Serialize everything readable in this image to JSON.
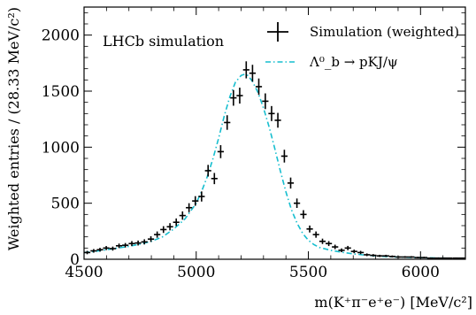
{
  "chart_data": {
    "type": "scatter",
    "annotation": "LHCb simulation",
    "xlabel": "m(K⁺π⁻e⁺e⁻) [MeV/c²]",
    "ylabel": "Weighted entries / (28.33 MeV/c²)",
    "xlim": [
      4500,
      6200
    ],
    "ylim": [
      0,
      2250
    ],
    "xticks": [
      4500,
      5000,
      5500,
      6000
    ],
    "xtick_labels": [
      "4500",
      "5000",
      "5500",
      "6000"
    ],
    "yticks": [
      0,
      500,
      1000,
      1500,
      2000
    ],
    "ytick_labels": [
      "0",
      "500",
      "1000",
      "1500",
      "2000"
    ],
    "legend_position": "top-right",
    "colors": {
      "data": "#000000",
      "fit": "#17becf"
    },
    "series": [
      {
        "name": "Simulation (weighted)",
        "kind": "errorbar",
        "x_halfwidth": 14.17,
        "x": [
          4514,
          4543,
          4571,
          4599,
          4628,
          4656,
          4684,
          4713,
          4741,
          4769,
          4798,
          4826,
          4854,
          4883,
          4911,
          4939,
          4968,
          4996,
          5024,
          5053,
          5081,
          5109,
          5138,
          5166,
          5194,
          5223,
          5251,
          5279,
          5308,
          5336,
          5364,
          5393,
          5421,
          5449,
          5478,
          5506,
          5534,
          5563,
          5591,
          5619,
          5648,
          5676,
          5704,
          5733,
          5761,
          5789,
          5818,
          5846,
          5874,
          5903,
          5931,
          5959,
          5988,
          6016,
          6044,
          6073,
          6101,
          6129,
          6158,
          6186
        ],
        "y": [
          60,
          75,
          85,
          100,
          95,
          120,
          125,
          140,
          145,
          155,
          180,
          220,
          265,
          290,
          330,
          390,
          460,
          520,
          560,
          790,
          720,
          960,
          1220,
          1440,
          1460,
          1690,
          1660,
          1540,
          1410,
          1300,
          1240,
          920,
          680,
          500,
          400,
          270,
          220,
          160,
          140,
          110,
          80,
          100,
          70,
          60,
          40,
          35,
          30,
          30,
          25,
          20,
          20,
          20,
          15,
          15,
          10,
          10,
          10,
          10,
          10,
          10
        ],
        "yerr": [
          15,
          16,
          17,
          18,
          18,
          20,
          20,
          22,
          22,
          23,
          25,
          28,
          30,
          32,
          34,
          37,
          40,
          43,
          45,
          52,
          50,
          58,
          65,
          70,
          71,
          76,
          75,
          73,
          70,
          67,
          66,
          57,
          49,
          42,
          38,
          31,
          28,
          24,
          22,
          20,
          17,
          19,
          16,
          15,
          12,
          11,
          10,
          10,
          9,
          8,
          8,
          8,
          7,
          7,
          6,
          6,
          6,
          6,
          6,
          6
        ]
      },
      {
        "name": "Λ⁰_b → pKJ/ψ",
        "kind": "line",
        "style": "dashdot",
        "x": [
          4500,
          4550,
          4600,
          4650,
          4700,
          4750,
          4800,
          4850,
          4900,
          4950,
          5000,
          5025,
          5050,
          5075,
          5100,
          5125,
          5150,
          5175,
          5200,
          5215,
          5230,
          5250,
          5275,
          5300,
          5325,
          5350,
          5375,
          5400,
          5425,
          5450,
          5475,
          5500,
          5525,
          5550,
          5600,
          5650,
          5700,
          5750,
          5800,
          5850,
          5900,
          6000,
          6100,
          6200
        ],
        "y": [
          60,
          70,
          85,
          100,
          115,
          135,
          160,
          200,
          270,
          360,
          500,
          610,
          740,
          900,
          1080,
          1280,
          1450,
          1580,
          1640,
          1650,
          1640,
          1590,
          1490,
          1350,
          1180,
          990,
          790,
          600,
          440,
          320,
          230,
          170,
          130,
          105,
          80,
          62,
          48,
          38,
          30,
          24,
          20,
          14,
          10,
          8
        ]
      }
    ]
  }
}
